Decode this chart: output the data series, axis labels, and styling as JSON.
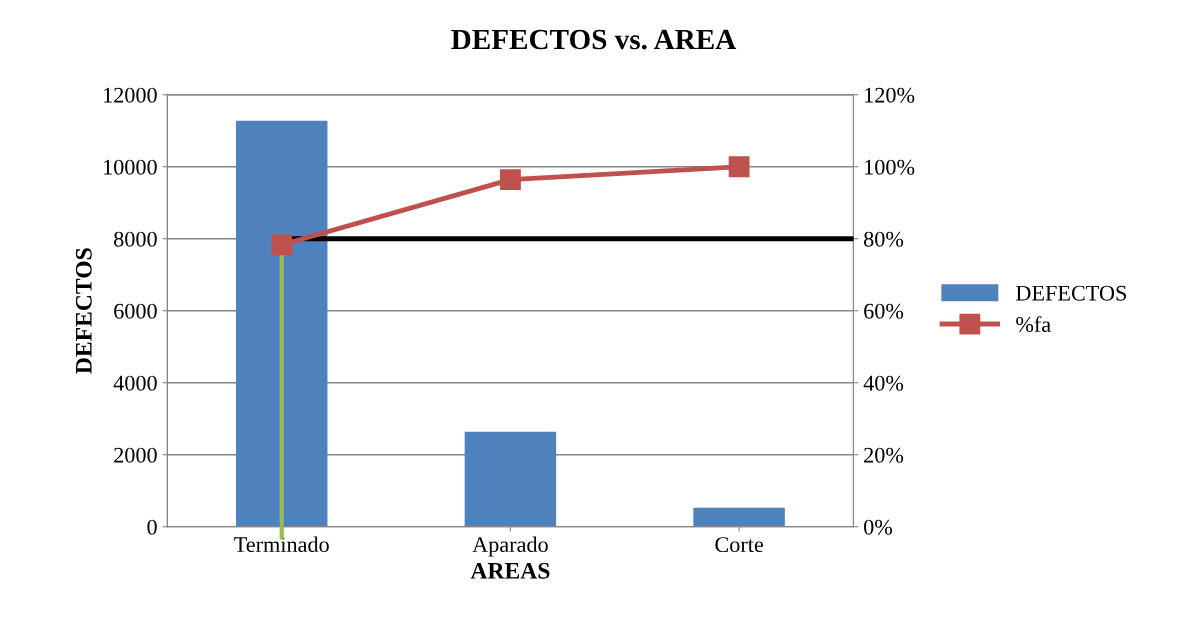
{
  "chart_data": {
    "type": "bar",
    "title": "DEFECTOS vs. AREA",
    "xlabel": "AREAS",
    "ylabel": "DEFECTOS",
    "categories": [
      "Terminado",
      "Aparado",
      "Corte"
    ],
    "series": [
      {
        "name": "DEFECTOS",
        "color": "#4f81bd",
        "values": [
          11280,
          2640,
          530
        ]
      },
      {
        "name": "%fa",
        "type": "line",
        "axis": "y2",
        "color": "#c0504d",
        "marker": "square",
        "values": [
          78.3,
          96.4,
          100
        ]
      }
    ],
    "ylim": [
      0,
      12000
    ],
    "yticks": [
      0,
      2000,
      4000,
      6000,
      8000,
      10000,
      12000
    ],
    "y2lim": [
      0,
      120
    ],
    "y2ticks": [
      {
        "value": 0,
        "label": "0%"
      },
      {
        "value": 20,
        "label": "20%"
      },
      {
        "value": 40,
        "label": "40%"
      },
      {
        "value": 60,
        "label": "60%"
      },
      {
        "value": 80,
        "label": "80%"
      },
      {
        "value": 100,
        "label": "100%"
      },
      {
        "value": 120,
        "label": "120%"
      }
    ],
    "ref_lines": [
      {
        "axis": "y2",
        "value": 80,
        "color": "#000000"
      },
      {
        "axis": "x",
        "value": "Terminado",
        "color": "#9bbb59"
      }
    ],
    "grid": "y",
    "legend": "right"
  }
}
